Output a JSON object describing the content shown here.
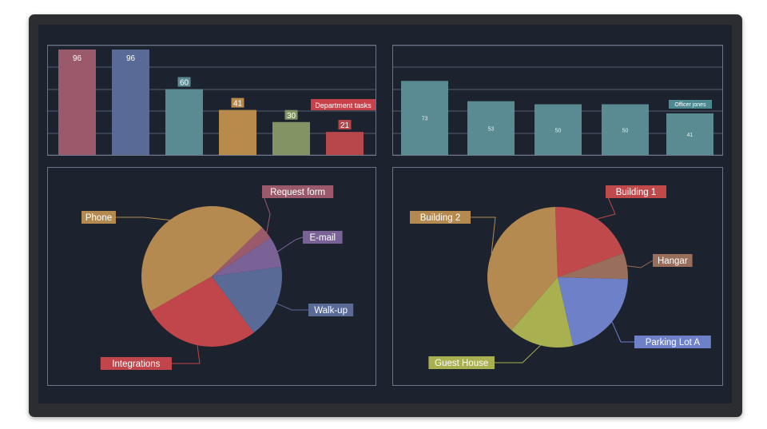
{
  "charts": {
    "bar_left": {
      "type": "bar",
      "values": [
        96,
        96,
        60,
        41,
        30,
        21
      ],
      "labels": [
        "96",
        "96",
        "60",
        "41",
        "30",
        "21"
      ],
      "colors": [
        "#9a5a6c",
        "#5a6a96",
        "#5a8a92",
        "#b88a4c",
        "#829464",
        "#b8474c"
      ],
      "ylim": [
        0,
        100
      ],
      "annotation": "Department tasks",
      "annotation_color": "#c8414a"
    },
    "bar_right": {
      "type": "bar",
      "values": [
        73,
        53,
        50,
        50,
        41
      ],
      "labels": [
        "73",
        "53",
        "50",
        "50",
        "41"
      ],
      "colors": [
        "#5a8a92",
        "#5a8a92",
        "#5a8a92",
        "#5a8a92",
        "#5a8a92"
      ],
      "ylim": [
        0,
        100
      ],
      "annotation": "Officer jones",
      "annotation_color": "#4e8890"
    },
    "pie_left": {
      "type": "pie",
      "slices": [
        {
          "label": "Request form",
          "value": 3,
          "color": "#9a5a6c"
        },
        {
          "label": "E-mail",
          "value": 7,
          "color": "#7a6296"
        },
        {
          "label": "Walk-up",
          "value": 17,
          "color": "#5a6a96"
        },
        {
          "label": "Integrations",
          "value": 27,
          "color": "#c0464c"
        },
        {
          "label": "Phone",
          "value": 46,
          "color": "#b48a50"
        }
      ]
    },
    "pie_right": {
      "type": "pie",
      "slices": [
        {
          "label": "Building 1",
          "value": 20,
          "color": "#c0494c"
        },
        {
          "label": "Hangar",
          "value": 6,
          "color": "#9a6e5c"
        },
        {
          "label": "Parking Lot A",
          "value": 21,
          "color": "#6e80c8"
        },
        {
          "label": "Guest House",
          "value": 15,
          "color": "#a8b050"
        },
        {
          "label": "Building 2",
          "value": 38,
          "color": "#b48a50"
        }
      ]
    }
  },
  "chart_data": [
    {
      "type": "bar",
      "categories": [
        "96",
        "96",
        "60",
        "41",
        "30",
        "21"
      ],
      "values": [
        96,
        96,
        60,
        41,
        30,
        21
      ],
      "annotation": "Department tasks",
      "ylim": [
        0,
        100
      ],
      "grid": true
    },
    {
      "type": "bar",
      "categories": [
        "73",
        "53",
        "50",
        "50",
        "41"
      ],
      "values": [
        73,
        53,
        50,
        50,
        41
      ],
      "annotation": "Officer jones",
      "ylim": [
        0,
        100
      ],
      "grid": true
    },
    {
      "type": "pie",
      "labels": [
        "Request form",
        "E-mail",
        "Walk-up",
        "Integrations",
        "Phone"
      ],
      "values": [
        3,
        7,
        17,
        27,
        46
      ]
    },
    {
      "type": "pie",
      "labels": [
        "Building 1",
        "Hangar",
        "Parking Lot A",
        "Guest House",
        "Building 2"
      ],
      "values": [
        20,
        6,
        21,
        15,
        38
      ]
    }
  ]
}
